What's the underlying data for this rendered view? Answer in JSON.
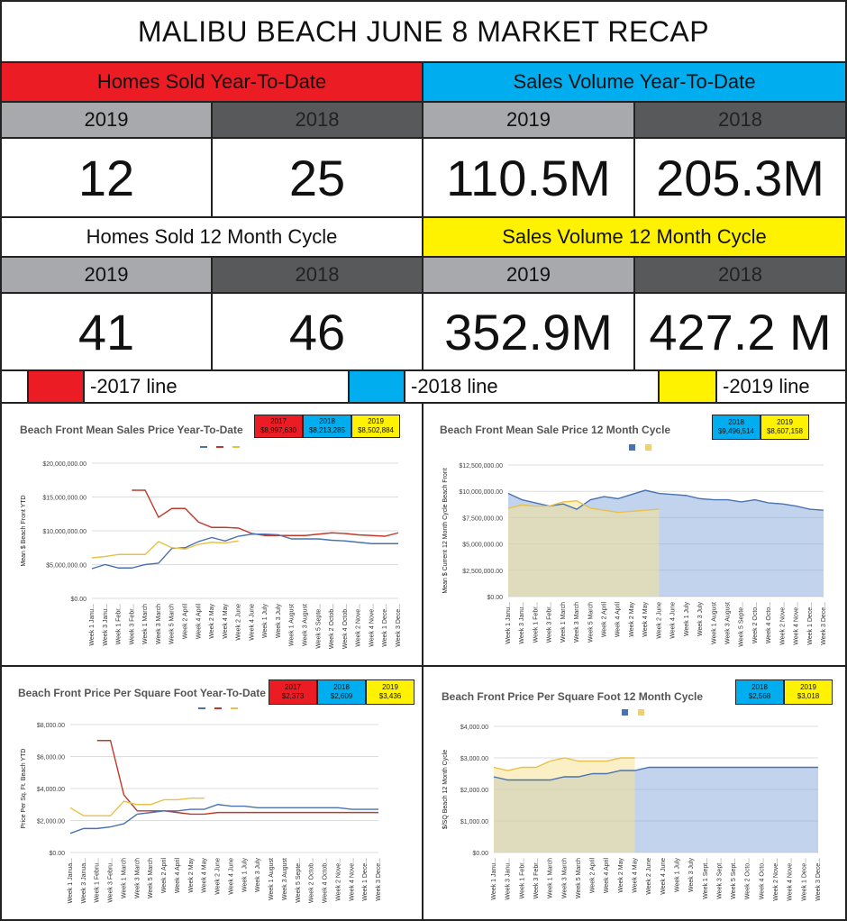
{
  "page_title": "MALIBU BEACH JUNE 8  MARKET RECAP",
  "colors": {
    "red": "#ec1c24",
    "blue": "#00aeef",
    "yellow": "#fff200",
    "gray2019": "#a7a9ac",
    "gray2018": "#58595b"
  },
  "stats": {
    "homes_ytd": {
      "label": "Homes Sold Year-To-Date",
      "y1": "2019",
      "y2": "2018",
      "v1": "12",
      "v2": "25"
    },
    "volume_ytd": {
      "label": "Sales Volume Year-To-Date",
      "y1": "2019",
      "y2": "2018",
      "v1": "110.5M",
      "v2": "205.3M"
    },
    "homes_12": {
      "label": "Homes Sold 12 Month Cycle",
      "y1": "2019",
      "y2": "2018",
      "v1": "41",
      "v2": "46"
    },
    "volume_12": {
      "label": "Sales Volume 12 Month Cycle",
      "y1": "2019",
      "y2": "2018",
      "v1": "352.9M",
      "v2": "427.2 M"
    }
  },
  "legend": {
    "l2017": "-2017 line",
    "l2018": "-2018 line",
    "l2019": "-2019 line"
  },
  "chart_data": [
    {
      "type": "line",
      "title": "Beach Front Mean Sales Price Year-To-Date",
      "ylabel": "Mean $ Beach Front YTD",
      "ylim": [
        0,
        20000000
      ],
      "yticks": [
        "$0.00",
        "$5,000,000.00",
        "$10,000,000.00",
        "$15,000,000.00",
        "$20,000,000.00"
      ],
      "xticks": [
        "Week 1 Janu...",
        "Week 3 Janu...",
        "Week 1 Febr...",
        "Week 3 Febr...",
        "Week 1 March",
        "Week 3 March",
        "Week 5 March",
        "Week 2 April",
        "Week 4 April",
        "Week 2 May",
        "Week 4 May",
        "Week 2 June",
        "Week 4 June",
        "Week 1 July",
        "Week 3 July",
        "Week 1 August",
        "Week 3 August",
        "Week 5 Septe...",
        "Week 2 Octob...",
        "Week 4 Octob...",
        "Week 2 Nove...",
        "Week 4 Nove...",
        "Week 1 Dece...",
        "Week 3 Dece..."
      ],
      "boxes": [
        {
          "year": "2017",
          "value": "$8,997,630",
          "color": "red"
        },
        {
          "year": "2018",
          "value": "$8,213,285",
          "color": "blue"
        },
        {
          "year": "2019",
          "value": "$8,502,884",
          "color": "yellow"
        }
      ],
      "series": [
        {
          "year": "2017",
          "color": "red",
          "values": [
            null,
            null,
            null,
            16000000,
            16000000,
            12000000,
            13300000,
            13300000,
            11300000,
            10500000,
            10500000,
            10400000,
            9600000,
            9300000,
            9300000,
            9300000,
            9300000,
            9500000,
            9700000,
            9600000,
            9400000,
            9300000,
            9200000,
            9700000
          ]
        },
        {
          "year": "2018",
          "color": "blue",
          "values": [
            4400000,
            5000000,
            4500000,
            4500000,
            5000000,
            5200000,
            7400000,
            7500000,
            8400000,
            9000000,
            8500000,
            9200000,
            9500000,
            9500000,
            9400000,
            8800000,
            8800000,
            8800000,
            8600000,
            8500000,
            8300000,
            8100000,
            8100000,
            8100000
          ]
        },
        {
          "year": "2019",
          "color": "yellow",
          "values": [
            6000000,
            6200000,
            6500000,
            6500000,
            6500000,
            8400000,
            7500000,
            7300000,
            8000000,
            8300000,
            8200000,
            8500000,
            null,
            null,
            null,
            null,
            null,
            null,
            null,
            null,
            null,
            null,
            null,
            null
          ]
        }
      ]
    },
    {
      "type": "area",
      "title": "Beach Front Mean Sale Price 12 Month Cycle",
      "ylabel": "Mean $ Current 12 Month Cycle Beach Front",
      "ylim": [
        0,
        12500000
      ],
      "yticks": [
        "$0.00",
        "$2,500,000.00",
        "$5,000,000.00",
        "$7,500,000.00",
        "$10,000,000.00",
        "$12,500,000.00"
      ],
      "xticks": [
        "Week 1 Janu...",
        "Week 3 Janu...",
        "Week 1 Febr...",
        "Week 3 Febr...",
        "Week 1 March",
        "Week 3 March",
        "Week 5 March",
        "Week 2 April",
        "Week 4 April",
        "Week 2 May",
        "Week 4 May",
        "Week 2 June",
        "Week 4 June",
        "Week 1 July",
        "Week 3 July",
        "Week 1 August",
        "Week 3 August",
        "Week 5 Septe...",
        "Week 2 Octo...",
        "Week 4 Octo...",
        "Week 2 Nove...",
        "Week 4 Nove...",
        "Week 1 Dece...",
        "Week 3 Dece..."
      ],
      "boxes": [
        {
          "year": "2018",
          "value": "$9,496,514",
          "color": "blue"
        },
        {
          "year": "2019",
          "value": "$8,607,158",
          "color": "yellow"
        }
      ],
      "series": [
        {
          "year": "2018",
          "color": "blue",
          "values": [
            9800000,
            9200000,
            8900000,
            8600000,
            8800000,
            8300000,
            9200000,
            9500000,
            9300000,
            9700000,
            10100000,
            9800000,
            9700000,
            9600000,
            9300000,
            9200000,
            9200000,
            9000000,
            9200000,
            8900000,
            8800000,
            8600000,
            8300000,
            8200000
          ]
        },
        {
          "year": "2019",
          "color": "yellow",
          "values": [
            8400000,
            8700000,
            8600000,
            8600000,
            9000000,
            9100000,
            8400000,
            8200000,
            8000000,
            8100000,
            8200000,
            8300000,
            null,
            null,
            null,
            null,
            null,
            null,
            null,
            null,
            null,
            null,
            null,
            null
          ]
        }
      ]
    },
    {
      "type": "line",
      "title": "Beach Front Price Per Square Foot Year-To-Date",
      "ylabel": "Price Per Sq. Ft. Beach YTD",
      "ylim": [
        0,
        8000
      ],
      "yticks": [
        "$0.00",
        "$2,000.00",
        "$4,000.00",
        "$6,000.00",
        "$8,000.00"
      ],
      "xticks": [
        "Week 1 Janua...",
        "Week 3 Janua...",
        "Week 1 Febru...",
        "Week 3 Febru...",
        "Week 1 March",
        "Week 3 March",
        "Week 5 March",
        "Week 2 April",
        "Week 4 April",
        "Week 2 May",
        "Week 4 May",
        "Week 2 June",
        "Week 4 June",
        "Week 1 July",
        "Week 3 July",
        "Week 1 August",
        "Week 3 August",
        "Week 5 Septe...",
        "Week 2 Octob...",
        "Week 4 Octob...",
        "Week 2 Nove...",
        "Week 4 Nove...",
        "Week 1 Dece...",
        "Week 3 Dece..."
      ],
      "boxes": [
        {
          "year": "2017",
          "value": "$2,373",
          "color": "red"
        },
        {
          "year": "2018",
          "value": "$2,609",
          "color": "blue"
        },
        {
          "year": "2019",
          "value": "$3,436",
          "color": "yellow"
        }
      ],
      "series": [
        {
          "year": "2017",
          "color": "red",
          "values": [
            null,
            null,
            7000,
            7000,
            3600,
            2600,
            2600,
            2600,
            2500,
            2400,
            2400,
            2500,
            2500,
            2500,
            2500,
            2500,
            2500,
            2500,
            2500,
            2500,
            2500,
            2500,
            2500,
            2500
          ]
        },
        {
          "year": "2018",
          "color": "blue",
          "values": [
            1200,
            1500,
            1500,
            1600,
            1800,
            2400,
            2500,
            2600,
            2600,
            2700,
            2700,
            3000,
            2900,
            2900,
            2800,
            2800,
            2800,
            2800,
            2800,
            2800,
            2800,
            2700,
            2700,
            2700
          ]
        },
        {
          "year": "2019",
          "color": "yellow",
          "values": [
            2800,
            2300,
            2300,
            2300,
            3200,
            3000,
            3000,
            3300,
            3300,
            3400,
            3400,
            null,
            null,
            null,
            null,
            null,
            null,
            null,
            null,
            null,
            null,
            null,
            null,
            null
          ]
        }
      ]
    },
    {
      "type": "area",
      "title": "Beach Front Price Per Square Foot  12 Month Cycle",
      "ylabel": "$/SQ Beach 12 Month Cycle",
      "ylim": [
        0,
        4000
      ],
      "yticks": [
        "$0.00",
        "$1,000.00",
        "$2,000.00",
        "$3,000.00",
        "$4,000.00"
      ],
      "xticks": [
        "Week 1 Janu...",
        "Week 3 Janu...",
        "Week 1 Febr...",
        "Week 3 Febr...",
        "Week 1 March",
        "Week 3 March",
        "Week 5 March",
        "Week 2 April",
        "Week 4 April",
        "Week 2 May",
        "Week 4 May",
        "Week 2 June",
        "Week 4 June",
        "Week 1 July",
        "Week 3 July",
        "Week 1 Sept...",
        "Week 3 Sept...",
        "Week 5 Sept...",
        "Week 2 Octo...",
        "Week 4 Octo...",
        "Week 2 Nove...",
        "Week 4 Nove...",
        "Week 1 Dece...",
        "Week 3 Dece..."
      ],
      "boxes": [
        {
          "year": "2018",
          "value": "$2,568",
          "color": "blue"
        },
        {
          "year": "2019",
          "value": "$3,018",
          "color": "yellow"
        }
      ],
      "series": [
        {
          "year": "2018",
          "color": "blue",
          "values": [
            2400,
            2300,
            2300,
            2300,
            2300,
            2400,
            2400,
            2500,
            2500,
            2600,
            2600,
            2700,
            2700,
            2700,
            2700,
            2700,
            2700,
            2700,
            2700,
            2700,
            2700,
            2700,
            2700,
            2700
          ]
        },
        {
          "year": "2019",
          "color": "yellow",
          "values": [
            2700,
            2600,
            2700,
            2700,
            2900,
            3000,
            2900,
            2900,
            2900,
            3000,
            3000,
            null,
            null,
            null,
            null,
            null,
            null,
            null,
            null,
            null,
            null,
            null,
            null,
            null
          ]
        }
      ]
    }
  ]
}
